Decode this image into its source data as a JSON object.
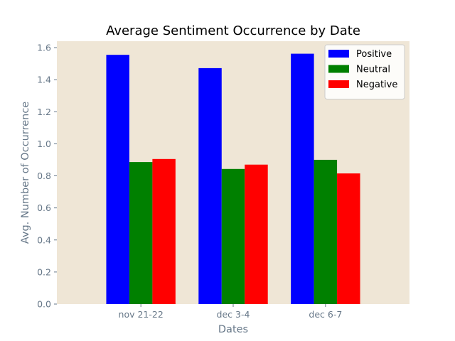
{
  "chart_data": {
    "type": "bar",
    "title": "Average Sentiment Occurrence by Date",
    "xlabel": "Dates",
    "ylabel": "Avg. Number of Occurrence",
    "categories": [
      "nov 21-22",
      "dec 3-4",
      "dec 6-7"
    ],
    "series": [
      {
        "name": "Positive",
        "color": "#0000ff",
        "values": [
          1.555,
          1.472,
          1.562
        ]
      },
      {
        "name": "Neutral",
        "color": "#008000",
        "values": [
          0.886,
          0.843,
          0.9
        ]
      },
      {
        "name": "Negative",
        "color": "#ff0000",
        "values": [
          0.905,
          0.87,
          0.815
        ]
      }
    ],
    "ylim": [
      0,
      1.64
    ],
    "yticks": [
      "0.0",
      "0.2",
      "0.4",
      "0.6",
      "0.8",
      "1.0",
      "1.2",
      "1.4",
      "1.6"
    ],
    "grid": false,
    "legend_position": "top-right",
    "plot_background": "#efe6d6"
  }
}
